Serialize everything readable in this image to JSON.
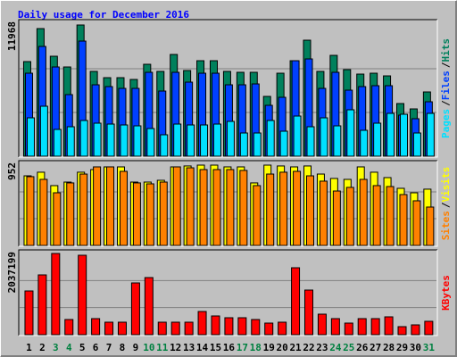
{
  "chart_data": [
    {
      "type": "bar",
      "title": "Daily usage for December 2016",
      "ylim": [
        0,
        11968
      ],
      "yticks": [
        11968
      ],
      "legend_separator": "/",
      "series": [
        {
          "name": "Hits",
          "color": "#00805c",
          "values": [
            8630,
            11640,
            9117,
            8140,
            11968,
            7733,
            7163,
            7163,
            7000,
            8384,
            7733,
            9280,
            7814,
            8710,
            8710,
            7733,
            7652,
            7652,
            5454,
            7570,
            8710,
            10582,
            7733,
            9198,
            7896,
            7489,
            7570,
            7326,
            4803,
            4314,
            5861
          ]
        },
        {
          "name": "Files",
          "color": "#0040ff",
          "values": [
            7570,
            10012,
            8140,
            5617,
            10501,
            6512,
            6349,
            6186,
            6186,
            7652,
            5942,
            7652,
            6756,
            7570,
            7570,
            6512,
            6512,
            6593,
            4640,
            5372,
            8710,
            8873,
            6186,
            7652,
            6024,
            6349,
            6431,
            6431,
            3744,
            3419,
            4965
          ]
        },
        {
          "name": "Pages",
          "color": "#00e0ff",
          "values": [
            3500,
            4558,
            2442,
            2686,
            3256,
            3012,
            2930,
            2849,
            2768,
            2523,
            1954,
            2930,
            2849,
            2849,
            2930,
            3175,
            2116,
            2116,
            3256,
            2279,
            3663,
            2686,
            3500,
            2768,
            4233,
            2361,
            3012,
            3907,
            3826,
            2116,
            3907
          ]
        }
      ]
    },
    {
      "type": "bar",
      "ylim": [
        0,
        952
      ],
      "yticks": [
        952
      ],
      "legend_separator": "/",
      "series": [
        {
          "name": "Visits",
          "color": "#ffff00",
          "values": [
            825,
            868,
            709,
            751,
            868,
            899,
            931,
            931,
            751,
            751,
            772,
            931,
            942,
            952,
            952,
            931,
            931,
            741,
            952,
            942,
            931,
            942,
            846,
            794,
            783,
            931,
            868,
            804,
            677,
            624,
            667
          ]
        },
        {
          "name": "Sites",
          "color": "#ff8000",
          "values": [
            815,
            783,
            624,
            741,
            846,
            931,
            931,
            878,
            741,
            730,
            751,
            931,
            920,
            899,
            899,
            899,
            889,
            709,
            846,
            868,
            878,
            825,
            762,
            645,
            688,
            783,
            709,
            698,
            603,
            529,
            455
          ]
        }
      ]
    },
    {
      "type": "bar",
      "ylim": [
        0,
        2037199
      ],
      "yticks": [
        2037199
      ],
      "series": [
        {
          "name": "KBytes",
          "color": "#ff0000",
          "values": [
            1096963,
            1499929,
            2037199,
            380579,
            1992443,
            402966,
            313418,
            313418,
            1298446,
            1432768,
            313418,
            313418,
            313418,
            582062,
            470127,
            425353,
            425353,
            380579,
            291031,
            313418,
            1679025,
            1119350,
            514901,
            402966,
            291031,
            402966,
            402966,
            447740,
            201483,
            246257,
            335805
          ]
        }
      ],
      "categories": [
        "1",
        "2",
        "3",
        "4",
        "5",
        "6",
        "7",
        "8",
        "9",
        "10",
        "11",
        "12",
        "13",
        "14",
        "15",
        "16",
        "17",
        "18",
        "19",
        "20",
        "21",
        "22",
        "23",
        "24",
        "25",
        "26",
        "27",
        "28",
        "29",
        "30",
        "31"
      ],
      "category_colors": [
        "#000000",
        "#000000",
        "#008040",
        "#008040",
        "#000000",
        "#000000",
        "#000000",
        "#000000",
        "#000000",
        "#008040",
        "#008040",
        "#000000",
        "#000000",
        "#000000",
        "#000000",
        "#000000",
        "#008040",
        "#008040",
        "#000000",
        "#000000",
        "#000000",
        "#000000",
        "#000000",
        "#008040",
        "#008040",
        "#000000",
        "#000000",
        "#000000",
        "#000000",
        "#000000",
        "#008040"
      ]
    }
  ]
}
